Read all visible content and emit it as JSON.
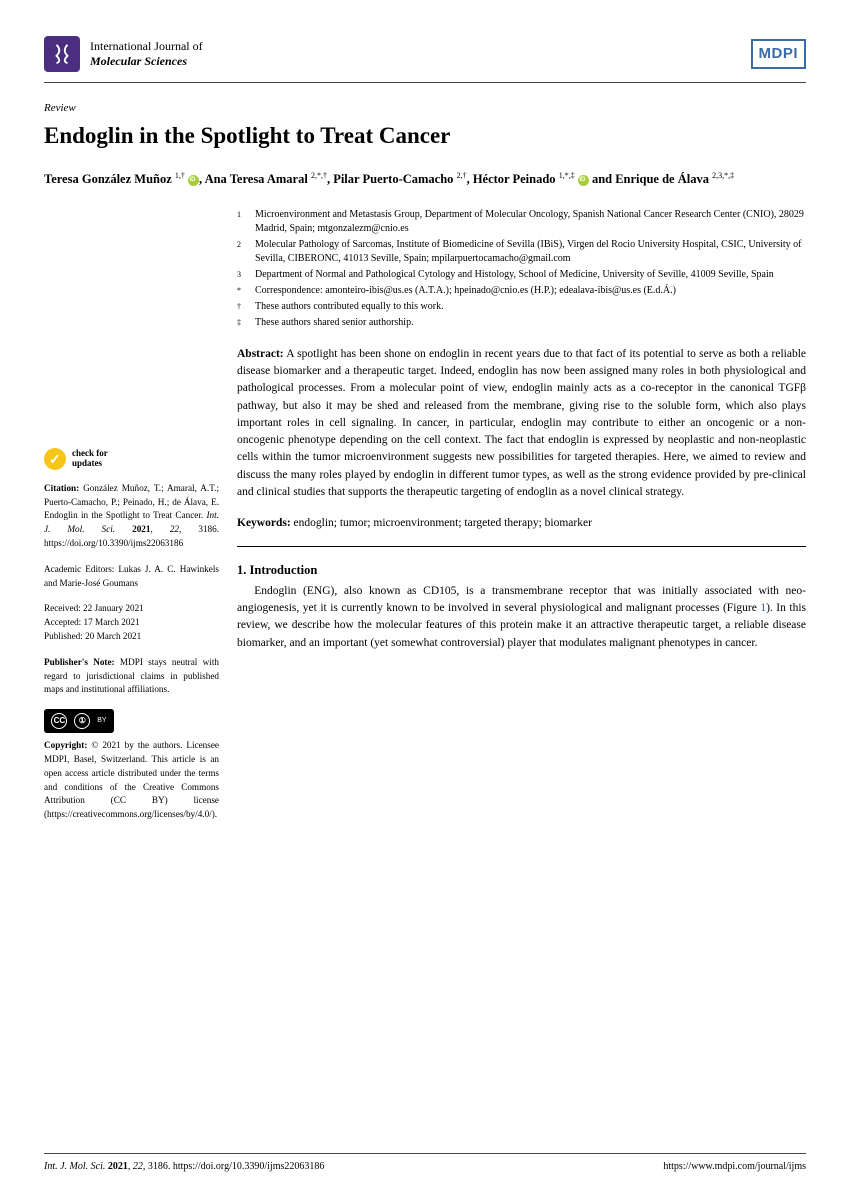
{
  "header": {
    "journal_line1": "International Journal of",
    "journal_line2": "Molecular Sciences",
    "publisher_badge": "MDPI"
  },
  "article": {
    "type": "Review",
    "title": "Endoglin in the Spotlight to Treat Cancer",
    "authors_html": "Teresa González Muñoz <span class='sup'>1,†</span> <span class='orcid'></span>, Ana Teresa Amaral <span class='sup'>2,*,†</span>, Pilar Puerto-Camacho <span class='sup'>2,†</span>, Héctor Peinado <span class='sup'>1,*,‡</span> <span class='orcid'></span> and Enrique de Álava <span class='sup'>2,3,*,‡</span>"
  },
  "affiliations": [
    {
      "marker": "1",
      "text": "Microenvironment and Metastasis Group, Department of Molecular Oncology, Spanish National Cancer Research Center (CNIO), 28029 Madrid, Spain; mtgonzalezm@cnio.es"
    },
    {
      "marker": "2",
      "text": "Molecular Pathology of Sarcomas, Institute of Biomedicine of Sevilla (IBiS), Virgen del Rocio University Hospital, CSIC, University of Sevilla, CIBERONC, 41013 Seville, Spain; mpilarpuertocamacho@gmail.com"
    },
    {
      "marker": "3",
      "text": "Department of Normal and Pathological Cytology and Histology, School of Medicine, University of Seville, 41009 Seville, Spain"
    },
    {
      "marker": "*",
      "text": "Correspondence: amonteiro-ibis@us.es (A.T.A.); hpeinado@cnio.es (H.P.); edealava-ibis@us.es (E.d.Á.)"
    },
    {
      "marker": "†",
      "text": "These authors contributed equally to this work."
    },
    {
      "marker": "‡",
      "text": "These authors shared senior authorship."
    }
  ],
  "abstract": {
    "label": "Abstract:",
    "text": "A spotlight has been shone on endoglin in recent years due to that fact of its potential to serve as both a reliable disease biomarker and a therapeutic target. Indeed, endoglin has now been assigned many roles in both physiological and pathological processes. From a molecular point of view, endoglin mainly acts as a co-receptor in the canonical TGFβ pathway, but also it may be shed and released from the membrane, giving rise to the soluble form, which also plays important roles in cell signaling. In cancer, in particular, endoglin may contribute to either an oncogenic or a non-oncogenic phenotype depending on the cell context. The fact that endoglin is expressed by neoplastic and non-neoplastic cells within the tumor microenvironment suggests new possibilities for targeted therapies. Here, we aimed to review and discuss the many roles played by endoglin in different tumor types, as well as the strong evidence provided by pre-clinical and clinical studies that supports the therapeutic targeting of endoglin as a novel clinical strategy."
  },
  "keywords": {
    "label": "Keywords:",
    "text": "endoglin; tumor; microenvironment; targeted therapy; biomarker"
  },
  "introduction": {
    "heading": "1. Introduction",
    "body_html": "Endoglin (ENG), also known as CD105, is a transmembrane receptor that was initially associated with neo-angiogenesis, yet it is currently known to be involved in several physiological and malignant processes (Figure <span class='link'>1</span>). In this review, we describe how the molecular features of this protein make it an attractive therapeutic target, a reliable disease biomarker, and an important (yet somewhat controversial) player that modulates malignant phenotypes in cancer."
  },
  "sidebar": {
    "check_l1": "check for",
    "check_l2": "updates",
    "citation_html": "<b>Citation:</b> González Muñoz, T.; Amaral, A.T.; Puerto-Camacho, P.; Peinado, H.; de Álava, E. Endoglin in the Spotlight to Treat Cancer. <i>Int. J. Mol. Sci.</i> <b>2021</b>, <i>22</i>, 3186. https://doi.org/10.3390/ijms22063186",
    "editors": "Academic Editors: Lukas J. A. C. Hawinkels and Marie-José Goumans",
    "received": "Received: 22 January 2021",
    "accepted": "Accepted: 17 March 2021",
    "published": "Published: 20 March 2021",
    "publishers_note_html": "<b>Publisher's Note:</b> MDPI stays neutral with regard to jurisdictional claims in published maps and institutional affiliations.",
    "copyright_html": "<b>Copyright:</b> © 2021 by the authors. Licensee MDPI, Basel, Switzerland. This article is an open access article distributed under the terms and conditions of the Creative Commons Attribution (CC BY) license (https://creativecommons.org/licenses/by/4.0/)."
  },
  "footer": {
    "left_html": "<i>Int. J. Mol. Sci.</i> <b>2021</b>, <i>22</i>, 3186. https://doi.org/10.3390/ijms22063186",
    "right": "https://www.mdpi.com/journal/ijms"
  }
}
